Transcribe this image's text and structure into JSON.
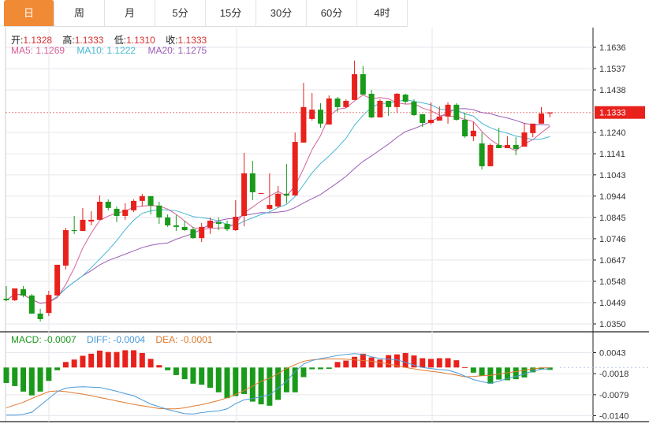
{
  "tabs": [
    "日",
    "周",
    "月",
    "5分",
    "15分",
    "30分",
    "60分",
    "4时"
  ],
  "active_tab": 0,
  "header": {
    "open_label": "开:",
    "open": "1.1328",
    "high_label": "高:",
    "high": "1.1333",
    "low_label": "低:",
    "low": "1.1310",
    "close_label": "收:",
    "close": "1.1333",
    "ma5": "MA5: 1.1269",
    "ma10": "MA10: 1.1222",
    "ma20": "MA20: 1.1275"
  },
  "macd_header": {
    "macd": "MACD: -0.0007",
    "diff": "DIFF: -0.0004",
    "dea": "DEA: -0.0001"
  },
  "colors": {
    "up": "#e8211c",
    "down": "#1a9a1a",
    "ma5": "#d6609a",
    "ma10": "#46b7d2",
    "ma20": "#9b5bb5",
    "diff": "#4a9ad8",
    "dea": "#e07a30",
    "active_tab": "#f08a35"
  },
  "chart_data": [
    {
      "type": "candlestick",
      "ylim": [
        1.035,
        1.1636
      ],
      "y_ticks": [
        "1.1636",
        "1.1537",
        "1.1438",
        "1.1240",
        "1.1141",
        "1.1043",
        "1.0944",
        "1.0845",
        "1.0746",
        "1.0647",
        "1.0548",
        "1.0449",
        "1.0350"
      ],
      "current_price": "1.1333",
      "grid": true,
      "ohlc": [
        [
          1.0467,
          1.0526,
          1.0456,
          1.046
        ],
        [
          1.046,
          1.0515,
          1.0456,
          1.0515
        ],
        [
          1.0511,
          1.0526,
          1.0474,
          1.0482
        ],
        [
          1.0482,
          1.0489,
          1.0398,
          1.0398
        ],
        [
          1.0398,
          1.042,
          1.0361,
          1.0372
        ],
        [
          1.0401,
          1.0504,
          1.0387,
          1.0485
        ],
        [
          1.0482,
          1.0625,
          1.0482,
          1.0625
        ],
        [
          1.0621,
          1.0797,
          1.0603,
          1.0786
        ],
        [
          1.0786,
          1.0852,
          1.0768,
          1.0782
        ],
        [
          1.0782,
          1.0889,
          1.0782,
          1.0834
        ],
        [
          1.0826,
          1.0874,
          1.0808,
          1.0834
        ],
        [
          1.0834,
          1.0947,
          1.0834,
          1.0918
        ],
        [
          1.0918,
          1.0929,
          1.0878,
          1.0889
        ],
        [
          1.0885,
          1.0896,
          1.0823,
          1.0852
        ],
        [
          1.0852,
          1.0911,
          1.0834,
          1.0881
        ],
        [
          1.0878,
          1.0929,
          1.087,
          1.0922
        ],
        [
          1.0922,
          1.0955,
          1.0896,
          1.0944
        ],
        [
          1.0944,
          1.0944,
          1.0859,
          1.09
        ],
        [
          1.09,
          1.0918,
          1.0815,
          1.0845
        ],
        [
          1.0845,
          1.0859,
          1.0801,
          1.0808
        ],
        [
          1.0808,
          1.0856,
          1.0782,
          1.0801
        ],
        [
          1.0801,
          1.083,
          1.0782,
          1.0786
        ],
        [
          1.079,
          1.0801,
          1.0746,
          1.0749
        ],
        [
          1.0749,
          1.0819,
          1.0731,
          1.0801
        ],
        [
          1.0797,
          1.0845,
          1.0768,
          1.083
        ],
        [
          1.0823,
          1.0845,
          1.0786,
          1.0815
        ],
        [
          1.0815,
          1.083,
          1.0782,
          1.079
        ],
        [
          1.0786,
          1.0925,
          1.0782,
          1.0848
        ],
        [
          1.0852,
          1.1145,
          1.0804,
          1.105
        ],
        [
          1.105,
          1.1108,
          1.0925,
          1.0962
        ],
        [
          1.0958,
          1.0958,
          1.0958,
          1.0958
        ],
        [
          1.0885,
          1.105,
          1.0881,
          1.0903
        ],
        [
          1.0896,
          1.0991,
          1.0889,
          1.0955
        ],
        [
          1.0955,
          1.1094,
          1.0911,
          1.0947
        ],
        [
          1.0947,
          1.124,
          1.0947,
          1.1196
        ],
        [
          1.1193,
          1.1471,
          1.1193,
          1.1358
        ],
        [
          1.1303,
          1.1423,
          1.1295,
          1.1346
        ],
        [
          1.1346,
          1.1376,
          1.1262,
          1.1281
        ],
        [
          1.1277,
          1.1412,
          1.1277,
          1.1398
        ],
        [
          1.1398,
          1.1405,
          1.1336,
          1.1358
        ],
        [
          1.1358,
          1.1394,
          1.1354,
          1.1387
        ],
        [
          1.1391,
          1.1574,
          1.1391,
          1.1511
        ],
        [
          1.1511,
          1.1548,
          1.1416,
          1.1416
        ],
        [
          1.142,
          1.1438,
          1.1306,
          1.131
        ],
        [
          1.131,
          1.1394,
          1.131,
          1.1387
        ],
        [
          1.1387,
          1.1387,
          1.1317,
          1.1358
        ],
        [
          1.1358,
          1.1423,
          1.1332,
          1.142
        ],
        [
          1.1416,
          1.142,
          1.1372,
          1.1383
        ],
        [
          1.1383,
          1.1394,
          1.1317,
          1.1321
        ],
        [
          1.1325,
          1.1325,
          1.1266,
          1.1284
        ],
        [
          1.1284,
          1.138,
          1.1277,
          1.1299
        ],
        [
          1.1295,
          1.1361,
          1.1295,
          1.1314
        ],
        [
          1.1314,
          1.138,
          1.1281,
          1.1369
        ],
        [
          1.1369,
          1.1376,
          1.1295,
          1.1299
        ],
        [
          1.1299,
          1.1332,
          1.1215,
          1.1222
        ],
        [
          1.1222,
          1.1288,
          1.12,
          1.1248
        ],
        [
          1.1189,
          1.124,
          1.1068,
          1.1083
        ],
        [
          1.1083,
          1.1189,
          1.1083,
          1.1182
        ],
        [
          1.1182,
          1.1262,
          1.1167,
          1.1167
        ],
        [
          1.1167,
          1.1222,
          1.1167,
          1.1182
        ],
        [
          1.1182,
          1.1218,
          1.1134,
          1.1163
        ],
        [
          1.1174,
          1.1284,
          1.1174,
          1.124
        ],
        [
          1.1237,
          1.1281,
          1.1218,
          1.1281
        ],
        [
          1.1281,
          1.1358,
          1.1281,
          1.1328
        ],
        [
          1.1328,
          1.1333,
          1.131,
          1.1333
        ]
      ],
      "ma_periods": {
        "ma5": 5,
        "ma10": 10,
        "ma20": 20
      }
    },
    {
      "type": "bar+line",
      "ylim": [
        -0.014,
        0.0043
      ],
      "y_ticks": [
        "0.0043",
        "-0.0018",
        "-0.0079",
        "-0.0140"
      ],
      "macd": [
        -0.0045,
        -0.0054,
        -0.007,
        -0.0081,
        -0.007,
        -0.0039,
        -0.0008,
        0.0016,
        0.0023,
        0.0034,
        0.004,
        0.0049,
        0.0045,
        0.0045,
        0.005,
        0.005,
        0.0042,
        0.0025,
        0.0007,
        -0.0008,
        -0.0022,
        -0.0034,
        -0.0047,
        -0.005,
        -0.0059,
        -0.0072,
        -0.0089,
        -0.0083,
        -0.0077,
        -0.0099,
        -0.0107,
        -0.0111,
        -0.0094,
        -0.0072,
        -0.0072,
        -0.0028,
        -0.0005,
        -0.0005,
        -0.0004,
        0.0016,
        0.002,
        0.0031,
        0.004,
        0.0029,
        0.0023,
        0.0036,
        0.0038,
        0.0042,
        0.0035,
        0.0027,
        0.0025,
        0.0027,
        0.0027,
        0.0021,
        0.0001,
        -0.0015,
        -0.0024,
        -0.0047,
        -0.0035,
        -0.0037,
        -0.0034,
        -0.0029,
        -0.0014,
        -0.0005,
        -0.0007
      ],
      "diff": [
        -0.0138,
        -0.0138,
        -0.0136,
        -0.013,
        -0.011,
        -0.009,
        -0.007,
        -0.006,
        -0.0057,
        -0.0056,
        -0.0057,
        -0.0058,
        -0.0063,
        -0.0069,
        -0.0076,
        -0.0082,
        -0.0094,
        -0.0106,
        -0.0114,
        -0.0122,
        -0.0128,
        -0.0134,
        -0.0135,
        -0.0131,
        -0.0128,
        -0.0126,
        -0.012,
        -0.0105,
        -0.0094,
        -0.009,
        -0.0085,
        -0.008,
        -0.006,
        -0.004,
        -0.0012,
        0.001,
        0.002,
        0.0026,
        0.003,
        0.0035,
        0.0038,
        0.004,
        0.0038,
        0.0031,
        0.0026,
        0.0024,
        0.0022,
        0.0015,
        0.0007,
        0.0,
        -0.0003,
        -0.0006,
        -0.0008,
        -0.0015,
        -0.0025,
        -0.0035,
        -0.0041,
        -0.0046,
        -0.004,
        -0.0032,
        -0.0026,
        -0.0019,
        -0.001,
        -0.0005,
        -0.0004
      ],
      "dea": [
        -0.0117,
        -0.0109,
        -0.0101,
        -0.009,
        -0.008,
        -0.007,
        -0.0068,
        -0.007,
        -0.0074,
        -0.0077,
        -0.0082,
        -0.0087,
        -0.0092,
        -0.0097,
        -0.0102,
        -0.0107,
        -0.0111,
        -0.0115,
        -0.0119,
        -0.012,
        -0.012,
        -0.0117,
        -0.0112,
        -0.0108,
        -0.0102,
        -0.0096,
        -0.0088,
        -0.0078,
        -0.0067,
        -0.0054,
        -0.004,
        -0.0031,
        -0.0018,
        -0.0003,
        0.0008,
        0.0018,
        0.0022,
        0.0024,
        0.0025,
        0.0025,
        0.0024,
        0.0022,
        0.002,
        0.0018,
        0.0015,
        0.001,
        0.0005,
        0.0,
        -0.0004,
        -0.0008,
        -0.0011,
        -0.0014,
        -0.0018,
        -0.0022,
        -0.0027,
        -0.0026,
        -0.0024,
        -0.0023,
        -0.0019,
        -0.0015,
        -0.0012,
        -0.0008,
        -0.0004,
        -0.0001,
        -0.0001
      ]
    }
  ]
}
